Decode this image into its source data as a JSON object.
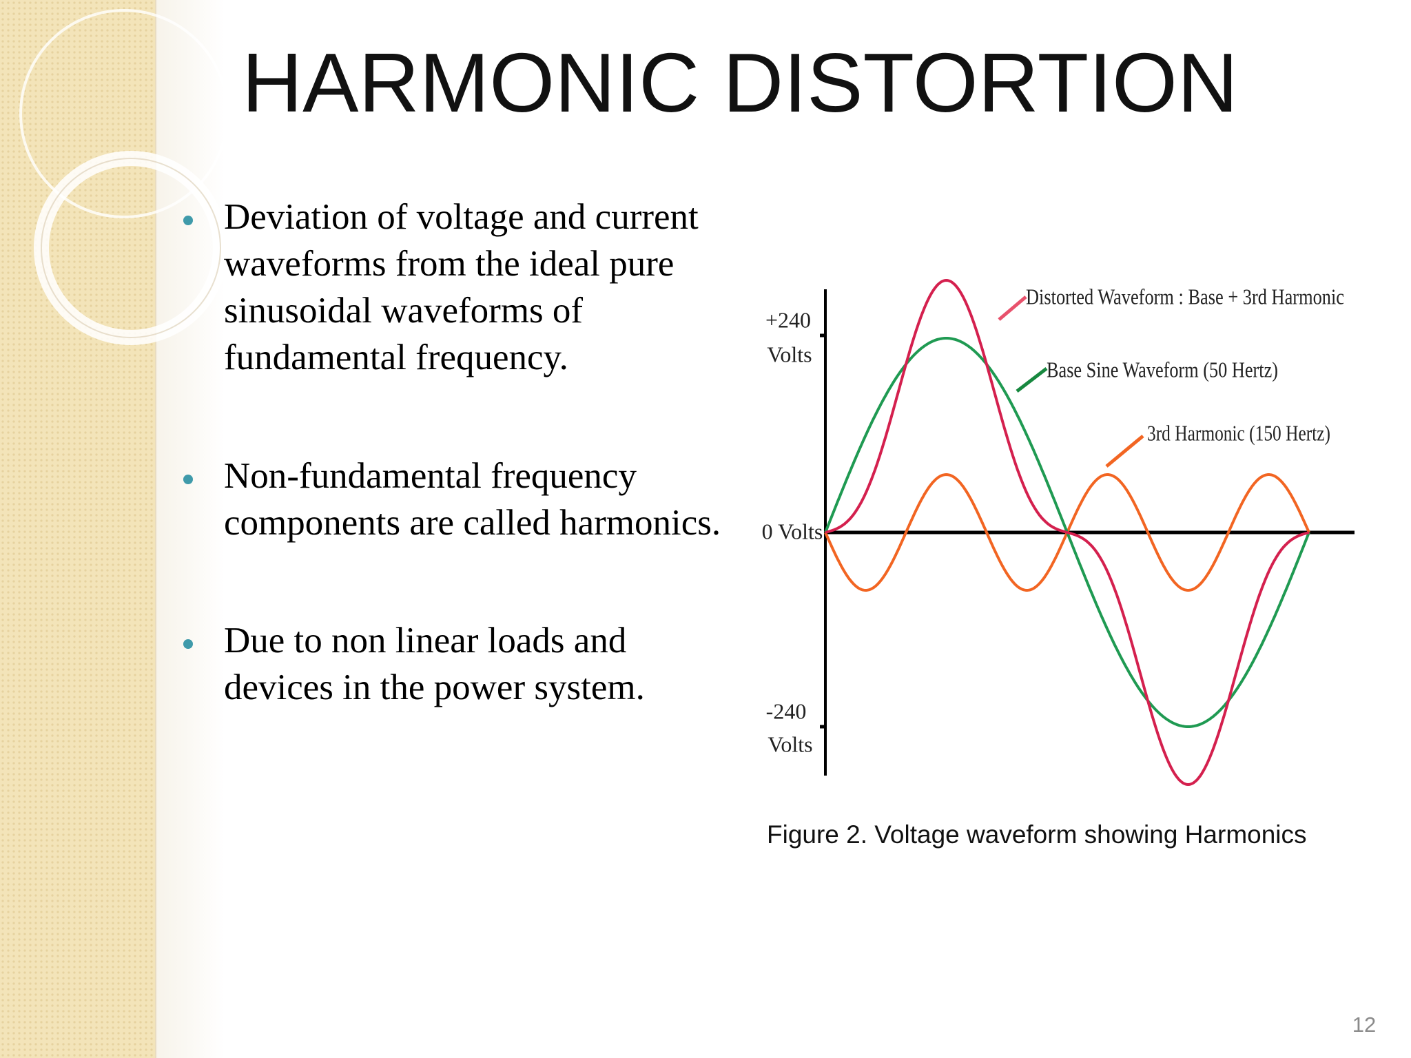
{
  "title": "HARMONIC  DISTORTION",
  "bullets": [
    [
      "Deviation of voltage and current",
      "waveforms from the ideal pure",
      "sinusoidal waveforms of",
      "fundamental frequency."
    ],
    [
      "Non-fundamental frequency",
      "components are called harmonics."
    ],
    [
      "Due to non linear loads and",
      "devices in the power system."
    ]
  ],
  "figure": {
    "axis_labels": {
      "top_value": "+240",
      "top_unit": "Volts",
      "zero": "0 Volts",
      "bottom_value": "-240",
      "bottom_unit": "Volts"
    },
    "labels": {
      "distorted": "Distorted Waveform : Base + 3rd Harmonic",
      "base": "Base Sine Waveform (50 Hertz)",
      "harmonic": "3rd Harmonic (150 Hertz)"
    },
    "caption": "Figure 2. Voltage waveform showing Harmonics"
  },
  "page_number": "12"
}
